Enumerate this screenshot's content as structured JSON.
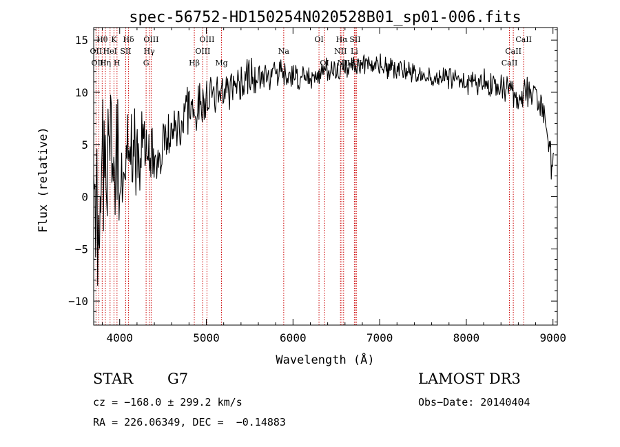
{
  "chart_data": {
    "type": "line",
    "title": "spec-56752-HD150254N020528B01_sp01-006.fits",
    "xlabel": "Wavelength (Å)",
    "ylabel": "Flux (relative)",
    "xlim": [
      3700,
      9050
    ],
    "ylim": [
      -12.3,
      16.2
    ],
    "xticks": [
      4000,
      5000,
      6000,
      7000,
      8000,
      9000
    ],
    "xtick_labels": [
      "4000",
      "5000",
      "6000",
      "7000",
      "8000",
      "9000"
    ],
    "yticks": [
      -10,
      -5,
      0,
      5,
      10,
      15
    ],
    "ytick_labels": [
      "−10",
      "−5",
      "0",
      "5",
      "10",
      "15"
    ],
    "continuum": {
      "x": [
        3700,
        3800,
        3900,
        4000,
        4100,
        4200,
        4300,
        4400,
        4500,
        4600,
        4700,
        4800,
        4900,
        5000,
        5100,
        5200,
        5300,
        5400,
        5500,
        5600,
        5700,
        5800,
        5900,
        6000,
        6200,
        6400,
        6600,
        6800,
        7000,
        7200,
        7400,
        7600,
        7800,
        8000,
        8200,
        8400,
        8500,
        8600,
        8700,
        8800,
        8900,
        9000
      ],
      "y": [
        -1.0,
        1.0,
        2.0,
        3.5,
        4.0,
        4.5,
        4.8,
        3.6,
        4.5,
        6.5,
        7.0,
        8.0,
        8.7,
        9.2,
        9.8,
        10.2,
        10.5,
        11.0,
        11.4,
        11.7,
        11.8,
        11.8,
        11.5,
        11.3,
        11.5,
        12.0,
        12.3,
        12.5,
        12.5,
        12.2,
        11.8,
        11.5,
        11.5,
        10.8,
        11.0,
        10.6,
        10.5,
        9.5,
        9.8,
        9.5,
        7.5,
        3.0
      ],
      "noise": {
        "x": [
          3700,
          3950,
          4100,
          4500,
          5000,
          5600,
          6500,
          8000,
          8600,
          9000
        ],
        "amp": [
          10.0,
          9.0,
          6.0,
          3.5,
          2.8,
          2.0,
          1.3,
          1.2,
          1.8,
          2.5
        ]
      }
    },
    "spectral_lines": [
      {
        "label": "Hθ",
        "x": 3798,
        "row": 1
      },
      {
        "label": "OII",
        "x": 3727,
        "row": 2
      },
      {
        "label": "OIII",
        "x": 3760,
        "row": 3
      },
      {
        "label": "Hη",
        "x": 3835,
        "row": 3
      },
      {
        "label": "HeI",
        "x": 3889,
        "row": 2
      },
      {
        "label": "K",
        "x": 3934,
        "row": 1
      },
      {
        "label": "H",
        "x": 3969,
        "row": 3
      },
      {
        "label": "SII",
        "x": 4070,
        "row": 2
      },
      {
        "label": "Hδ",
        "x": 4102,
        "row": 1
      },
      {
        "label": "OIII",
        "x": 4363,
        "row": 1
      },
      {
        "label": "Hγ",
        "x": 4341,
        "row": 2
      },
      {
        "label": "G",
        "x": 4305,
        "row": 3
      },
      {
        "label": "OIII",
        "x": 5007,
        "row": 1
      },
      {
        "label": "OIII",
        "x": 4959,
        "row": 2
      },
      {
        "label": "Hβ",
        "x": 4861,
        "row": 3
      },
      {
        "label": "Mg",
        "x": 5175,
        "row": 3
      },
      {
        "label": "Na",
        "x": 5893,
        "row": 2
      },
      {
        "label": "OI",
        "x": 6300,
        "row": 1
      },
      {
        "label": "OI",
        "x": 6364,
        "row": 3
      },
      {
        "label": "Hα",
        "x": 6563,
        "row": 1
      },
      {
        "label": "NII",
        "x": 6548,
        "row": 2
      },
      {
        "label": "NII",
        "x": 6584,
        "row": 3
      },
      {
        "label": "SII",
        "x": 6717,
        "row": 1
      },
      {
        "label": "Li",
        "x": 6708,
        "row": 2
      },
      {
        "label": "SII",
        "x": 6731,
        "row": 3
      },
      {
        "label": "CaII",
        "x": 8662,
        "row": 1
      },
      {
        "label": "CaII",
        "x": 8542,
        "row": 2
      },
      {
        "label": "CaII",
        "x": 8498,
        "row": 3
      }
    ]
  },
  "info": {
    "object_class": "STAR",
    "subclass": "G7",
    "survey": "LAMOST DR3",
    "redshift_line": "cz = −168.0 ± 299.2 km/s",
    "obs_date": "Obs−Date: 20140404",
    "coords": "RA = 226.06349, DEC =  −0.14883"
  },
  "colors": {
    "spectrum": "#000000",
    "line_markers": "#cc0000",
    "axes": "#000000",
    "background": "#ffffff"
  }
}
